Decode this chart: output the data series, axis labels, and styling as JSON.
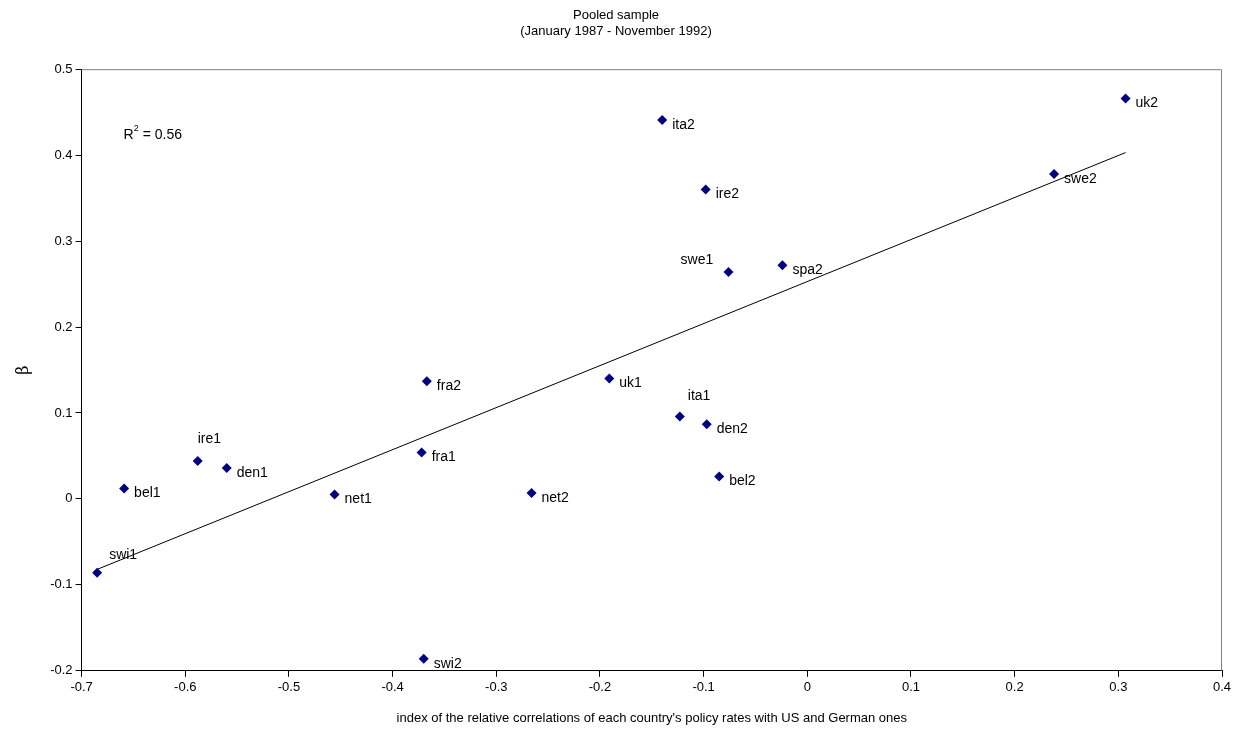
{
  "chart_data": {
    "type": "scatter",
    "title": "Pooled sample",
    "subtitle": "(January 1987 - November 1992)",
    "xlabel": "index of the relative correlations of each country's policy rates with US and German ones",
    "ylabel": "β",
    "xlim": [
      -0.7,
      0.4
    ],
    "xticks": [
      -0.7,
      -0.6,
      -0.5,
      -0.4,
      -0.3,
      -0.2,
      -0.1,
      0,
      0.1,
      0.2,
      0.3,
      0.4
    ],
    "ylim": [
      -0.2,
      0.5
    ],
    "yticks": [
      -0.2,
      -0.1,
      0,
      0.1,
      0.2,
      0.3,
      0.4,
      0.5
    ],
    "grid": false,
    "legend": false,
    "series": [
      {
        "marker": "diamond",
        "color": "#000080",
        "x": [
          0.307,
          0.238,
          -0.14,
          -0.098,
          -0.076,
          -0.024,
          -0.367,
          -0.191,
          -0.123,
          -0.097,
          -0.085,
          -0.588,
          -0.56,
          -0.659,
          -0.685,
          -0.456,
          -0.372,
          -0.266,
          -0.37
        ],
        "values": [
          0.466,
          0.378,
          0.441,
          0.36,
          0.264,
          0.272,
          0.137,
          0.14,
          0.096,
          0.087,
          0.026,
          0.044,
          0.036,
          0.012,
          -0.086,
          0.005,
          0.054,
          0.007,
          -0.186
        ]
      },
      {
        "type": "line",
        "color": "#000000",
        "x": [
          -0.685,
          0.307
        ],
        "values": [
          -0.082,
          0.403
        ]
      }
    ],
    "annotations": [
      "R$^{2}$ = 0.56",
      {
        "text": "uk2",
        "x": 0.307,
        "y": 0.466
      },
      {
        "text": "swe2",
        "x": 0.238,
        "y": 0.378
      },
      {
        "text": "ita2",
        "x": -0.14,
        "y": 0.441
      },
      {
        "text": "ire2",
        "x": -0.098,
        "y": 0.36
      },
      {
        "text": "swe1",
        "x": -0.076,
        "y": 0.264
      },
      {
        "text": "spa2",
        "x": -0.024,
        "y": 0.272
      },
      {
        "text": "fra2",
        "x": -0.367,
        "y": 0.137
      },
      {
        "text": "uk1",
        "x": -0.191,
        "y": 0.14
      },
      {
        "text": "ita1",
        "x": -0.123,
        "y": 0.096
      },
      {
        "text": "den2",
        "x": -0.097,
        "y": 0.087
      },
      {
        "text": "bel2",
        "x": -0.085,
        "y": 0.026
      },
      {
        "text": "ire1",
        "x": -0.588,
        "y": 0.044
      },
      {
        "text": "den1",
        "x": -0.56,
        "y": 0.036
      },
      {
        "text": "bel1",
        "x": -0.659,
        "y": 0.012
      },
      {
        "text": "swi1",
        "x": -0.685,
        "y": -0.086
      },
      {
        "text": "net1",
        "x": -0.456,
        "y": 0.005
      },
      {
        "text": "fra1",
        "x": -0.372,
        "y": 0.054
      },
      {
        "text": "net2",
        "x": -0.266,
        "y": 0.007
      },
      {
        "text": "swi2",
        "x": -0.37,
        "y": -0.186
      }
    ]
  }
}
